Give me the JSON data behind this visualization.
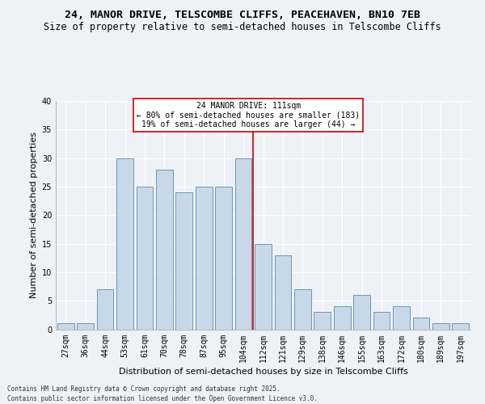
{
  "title1": "24, MANOR DRIVE, TELSCOMBE CLIFFS, PEACEHAVEN, BN10 7EB",
  "title2": "Size of property relative to semi-detached houses in Telscombe Cliffs",
  "xlabel": "Distribution of semi-detached houses by size in Telscombe Cliffs",
  "ylabel": "Number of semi-detached properties",
  "categories": [
    "27sqm",
    "36sqm",
    "44sqm",
    "53sqm",
    "61sqm",
    "70sqm",
    "78sqm",
    "87sqm",
    "95sqm",
    "104sqm",
    "112sqm",
    "121sqm",
    "129sqm",
    "138sqm",
    "146sqm",
    "155sqm",
    "163sqm",
    "172sqm",
    "180sqm",
    "189sqm",
    "197sqm"
  ],
  "values": [
    1,
    1,
    7,
    30,
    25,
    28,
    24,
    25,
    25,
    30,
    15,
    13,
    7,
    3,
    4,
    6,
    3,
    4,
    2,
    1,
    1
  ],
  "bar_color": "#c8d8e8",
  "bar_edge_color": "#5a8ab0",
  "vline_x_index": 10,
  "vline_color": "#cc0000",
  "annotation_title": "24 MANOR DRIVE: 111sqm",
  "annotation_line1": "← 80% of semi-detached houses are smaller (183)",
  "annotation_line2": "19% of semi-detached houses are larger (44) →",
  "annotation_box_color": "#ffffff",
  "annotation_box_edge": "#cc0000",
  "footer1": "Contains HM Land Registry data © Crown copyright and database right 2025.",
  "footer2": "Contains public sector information licensed under the Open Government Licence v3.0.",
  "ylim": [
    0,
    40
  ],
  "yticks": [
    0,
    5,
    10,
    15,
    20,
    25,
    30,
    35,
    40
  ],
  "bg_color": "#eef2f7",
  "title1_fontsize": 9.5,
  "title2_fontsize": 8.5,
  "axis_label_fontsize": 8,
  "tick_fontsize": 7,
  "annotation_fontsize": 7,
  "footer_fontsize": 5.5
}
